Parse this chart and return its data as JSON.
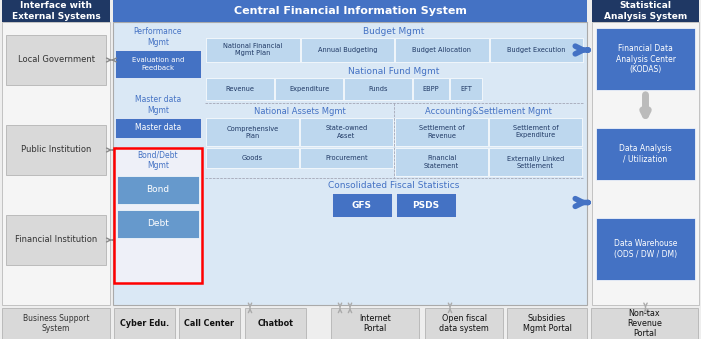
{
  "title_left": "Interface with\nExternal Systems",
  "title_center": "Central Financial Information System",
  "title_right": "Statistical\nAnalysis System",
  "left_boxes": [
    "Local Government",
    "Public Institution",
    "Financial Institution"
  ],
  "bottom_left_box": "Business Support\nSystem",
  "bottom_boxes": [
    "Cyber Edu.",
    "Call Center",
    "Chatbot",
    "Internet\nPortal",
    "Open fiscal\ndata system",
    "Subsidies\nMgmt Portal",
    "Non-tax\nRevenue\nPortal"
  ],
  "budget_label": "Budget Mgmt",
  "budget_boxes": [
    "National Financial\nMgmt Plan",
    "Annual Budgeting",
    "Budget Allocation",
    "Budget Execution"
  ],
  "fund_label": "National Fund Mgmt",
  "fund_boxes": [
    "Revenue",
    "Expenditure",
    "Funds",
    "EBPP",
    "EFT"
  ],
  "assets_label": "National Assets Mgmt",
  "assets_boxes_top": [
    "Comprehensive\nPlan",
    "State-owned\nAsset"
  ],
  "assets_boxes_bot": [
    "Goods",
    "Procurement"
  ],
  "accounting_label": "Accounting&Settlement Mgmt",
  "accounting_boxes_top": [
    "Settlement of\nRevenue",
    "Settlement of\nExpenditure"
  ],
  "accounting_boxes_bot": [
    "Financial\nStatement",
    "Externally Linked\nSettlement"
  ],
  "fiscal_label": "Consolidated Fiscal Statistics",
  "fiscal_boxes": [
    "GFS",
    "PSDS"
  ],
  "right_boxes": [
    "Financial Data\nAnalysis Center\n(KODAS)",
    "Data Analysis\n/ Utilization",
    "Data Warehouse\n(ODS / DW / DM)"
  ],
  "color_dark_blue": "#1F3864",
  "color_medium_blue": "#4472C4",
  "color_light_blue": "#BDD7EE",
  "color_lighter_blue": "#DAE8F5",
  "color_inner_blue": "#C5D9F1",
  "color_box_blue": "#6699CC",
  "color_light_gray": "#D9D9D9",
  "color_bg_gray": "#EFEFEF",
  "color_panel_gray": "#F5F5F5",
  "color_red_border": "#FF0000",
  "color_white": "#FFFFFF"
}
